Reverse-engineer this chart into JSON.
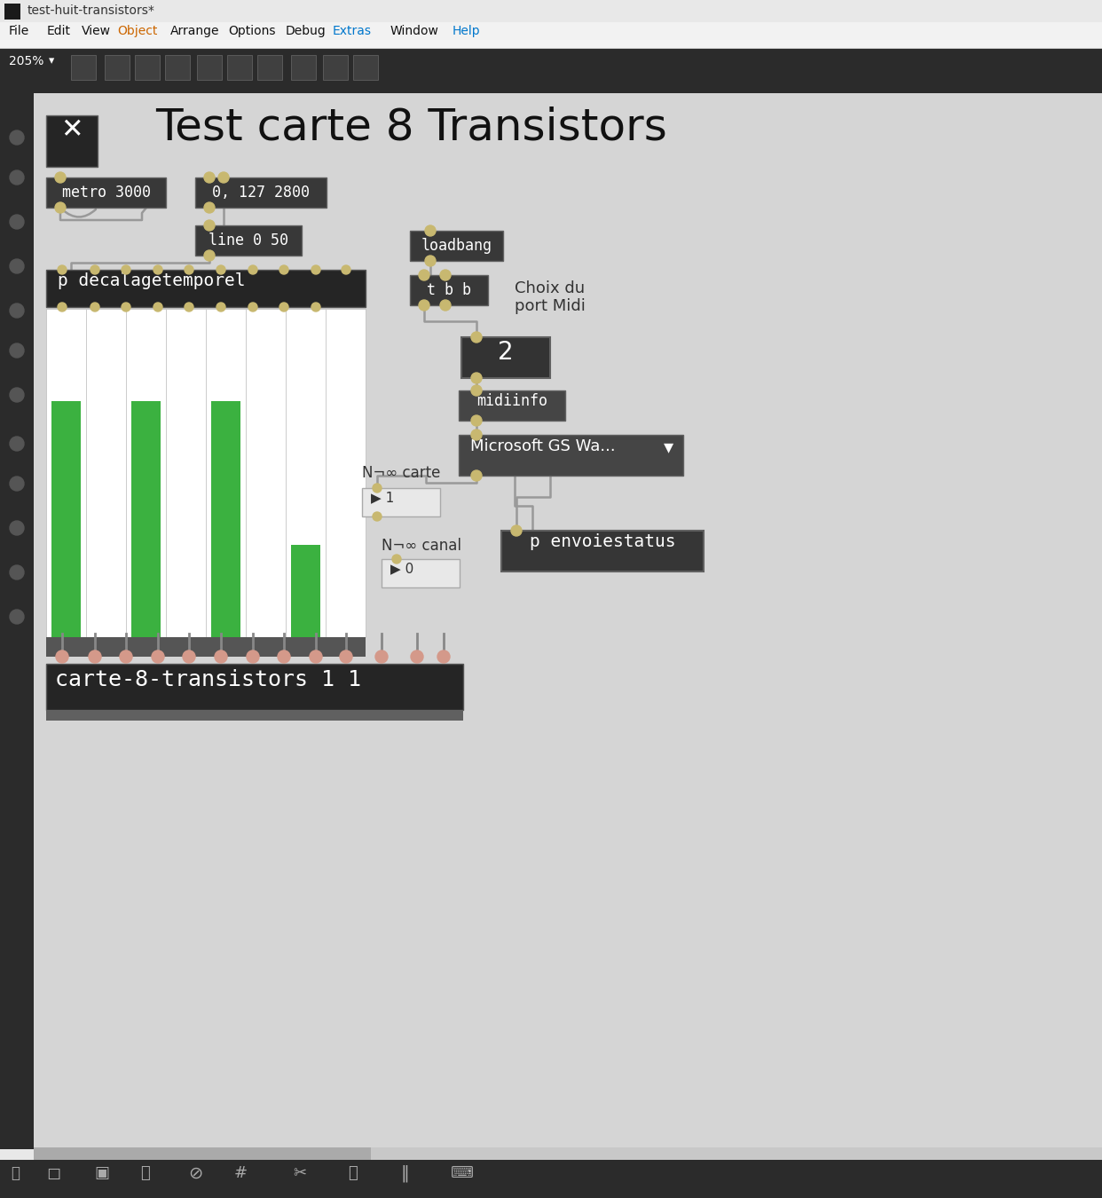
{
  "title_bar_text": "test-huit-transistors*",
  "menu_items": [
    "File",
    "Edit",
    "View",
    "Object",
    "Arrange",
    "Options",
    "Debug",
    "Extras",
    "Window",
    "Help"
  ],
  "patch_title": "Test carte 8 Transistors",
  "bottom_bar_text": "carte-8-transistors 1 1",
  "label_carte": "N¬∞ carte",
  "label_canal": "N¬∞ canal",
  "choix_text1": "Choix du",
  "choix_text2": "port Midi",
  "microsoft_text": "Microsoft GS Wa...",
  "envoie_text": "p envoiestatus",
  "green_bar_color": "#3bb140",
  "title_bar_bg": "#e8e8e8",
  "menu_bar_bg": "#f2f2f2",
  "toolbar_bg": "#2b2b2b",
  "canvas_bg": "#d5d5d5",
  "left_panel_bg": "#2b2b2b",
  "node_bg": "#383838",
  "node_bg_dark": "#252525",
  "bottom_status_bg": "#252525",
  "wire_color": "#999999",
  "connector_yellow": "#c8b870",
  "connector_pink": "#d4998a",
  "bar_area_bg": "#ffffff",
  "bar_sep_color": "#cccccc",
  "num_box_bg": "#e8e8e8",
  "dropdown_bg": "#454545"
}
